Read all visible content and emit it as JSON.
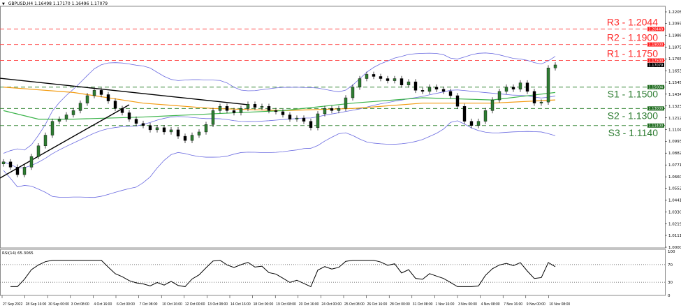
{
  "header": {
    "symbol": "GBPUSD,H4",
    "ohlc": "1.16498 1.17170 1.16496 1.17079"
  },
  "rsi_label": "RSI(14) 65.3065",
  "colors": {
    "bull": "#2e7d32",
    "bear": "#000000",
    "resistance": "#ff4d4d",
    "support": "#3a8a3a",
    "bollinger": "#6a6ae0",
    "ma_slow": "#f39c12",
    "ma_fast": "#3cb44b",
    "trendline": "#000000"
  },
  "chart_data": {
    "type": "candlestick",
    "symbol": "GBPUSD",
    "timeframe": "H4",
    "ylim": [
      1.0,
      1.2205
    ],
    "y_ticks": [
      "1.22050",
      "1.20970",
      "1.19860",
      "1.18750",
      "1.17650",
      "1.16530",
      "1.15450",
      "1.14340",
      "1.13230",
      "1.12120",
      "1.11040",
      "1.09930",
      "1.08820",
      "1.07710",
      "1.06600",
      "1.05520",
      "1.04410",
      "1.03300",
      "1.02190",
      "1.01110",
      "1.00000"
    ],
    "x_ticks": [
      "27 Sep 2022",
      "28 Sep 16:00",
      "30 Sep 00:00",
      "3 Oct 08:00",
      "4 Oct 16:00",
      "6 Oct 00:00",
      "7 Oct 08:00",
      "10 Oct 16:00",
      "12 Oct 00:00",
      "13 Oct 08:00",
      "14 Oct 16:00",
      "18 Oct 00:00",
      "19 Oct 08:00",
      "20 Oct 16:00",
      "24 Oct 00:00",
      "25 Oct 08:00",
      "26 Oct 16:00",
      "28 Oct 00:00",
      "31 Oct 08:00",
      "1 Nov 16:00",
      "3 Nov 00:00",
      "4 Nov 08:00",
      "7 Nov 16:00",
      "9 Nov 00:00",
      "10 Nov 08:00"
    ],
    "closes": [
      1.08,
      1.075,
      1.068,
      1.075,
      1.085,
      1.095,
      1.105,
      1.118,
      1.12,
      1.124,
      1.128,
      1.135,
      1.142,
      1.147,
      1.143,
      1.137,
      1.13,
      1.126,
      1.12,
      1.116,
      1.114,
      1.11,
      1.112,
      1.108,
      1.11,
      1.104,
      1.1,
      1.105,
      1.108,
      1.115,
      1.128,
      1.132,
      1.128,
      1.126,
      1.13,
      1.134,
      1.131,
      1.132,
      1.128,
      1.127,
      1.124,
      1.12,
      1.121,
      1.118,
      1.112,
      1.125,
      1.13,
      1.128,
      1.13,
      1.14,
      1.15,
      1.158,
      1.162,
      1.16,
      1.158,
      1.156,
      1.158,
      1.152,
      1.155,
      1.147,
      1.146,
      1.15,
      1.148,
      1.146,
      1.142,
      1.132,
      1.118,
      1.114,
      1.118,
      1.128,
      1.138,
      1.146,
      1.15,
      1.148,
      1.154,
      1.146,
      1.135,
      1.136,
      1.168,
      1.1708
    ],
    "ma_slow": [
      [
        0,
        1.15
      ],
      [
        10,
        1.145
      ],
      [
        20,
        1.135
      ],
      [
        30,
        1.13
      ],
      [
        40,
        1.128
      ],
      [
        50,
        1.13
      ],
      [
        60,
        1.135
      ],
      [
        70,
        1.135
      ],
      [
        79,
        1.138
      ]
    ],
    "ma_fast": [
      [
        0,
        1.128
      ],
      [
        5,
        1.12
      ],
      [
        10,
        1.12
      ],
      [
        20,
        1.122
      ],
      [
        30,
        1.125
      ],
      [
        40,
        1.128
      ],
      [
        50,
        1.135
      ],
      [
        60,
        1.14
      ],
      [
        70,
        1.138
      ],
      [
        79,
        1.145
      ]
    ],
    "trendlines": [
      {
        "from": [
          0,
          1.1583
        ],
        "to": [
          35,
          1.1335
        ]
      },
      {
        "from": [
          0,
          1.0648
        ],
        "to": [
          18,
          1.1335
        ]
      }
    ],
    "levels": [
      {
        "label": "R3 - 1.2044",
        "value": 1.2044,
        "tag": "1.20440",
        "kind": "resistance"
      },
      {
        "label": "R2 - 1.1900",
        "value": 1.19,
        "tag": "1.19000",
        "kind": "resistance"
      },
      {
        "label": "R1 - 1.1750",
        "value": 1.175,
        "tag": "1.17500",
        "kind": "resistance"
      },
      {
        "label": "S1 - 1.1500",
        "value": 1.15,
        "tag": "1.15004",
        "kind": "support"
      },
      {
        "label": "S2 - 1.1300",
        "value": 1.13,
        "tag": "1.13000",
        "kind": "support"
      },
      {
        "label": "S3 - 1.1140",
        "value": 1.114,
        "tag": "1.11400",
        "kind": "support"
      }
    ],
    "current_price": {
      "value": 1.17079,
      "tag": "1.17079"
    },
    "rsi": {
      "period": 14,
      "value": 65.3065,
      "ylim": [
        0,
        100
      ],
      "y_ticks": [
        "100",
        "70",
        "30",
        "0"
      ],
      "levels": [
        70,
        30
      ]
    }
  }
}
